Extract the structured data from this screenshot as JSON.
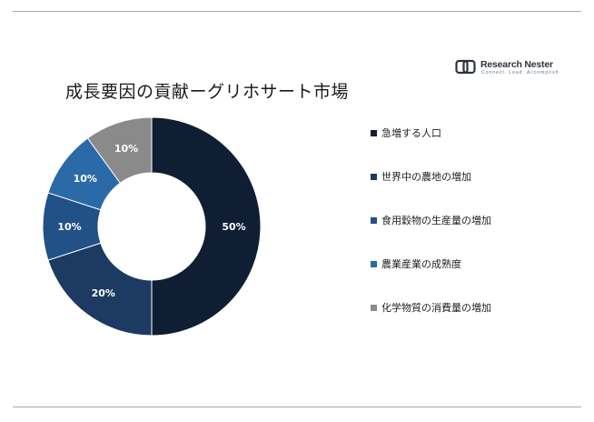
{
  "page": {
    "title": "成長要因の貢献ーグリホサート市場"
  },
  "brand": {
    "name": "Research Nester",
    "tagline": "Connect. Lead. Accomplish",
    "logo_icon": "rn-logo-icon"
  },
  "colors": {
    "navy": "#0f1e33",
    "dark_blue": "#1c3a62",
    "mid_blue": "#215186",
    "bright_blue": "#2a6aa8",
    "gray": "#8a8a8a"
  },
  "chart_data": {
    "type": "donut",
    "title": "成長要因の貢献ーグリホサート市場",
    "unit": "%",
    "legend_position": "right",
    "slices": [
      {
        "label": "急増する人口",
        "value": 50,
        "display": "50%",
        "color": "#0f1e33"
      },
      {
        "label": "世界中の農地の増加",
        "value": 20,
        "display": "20%",
        "color": "#1c3a62"
      },
      {
        "label": "食用穀物の生産量の増加",
        "value": 10,
        "display": "10%",
        "color": "#215186"
      },
      {
        "label": "農業産業の成熟度",
        "value": 10,
        "display": "10%",
        "color": "#2a6aa8"
      },
      {
        "label": "化学物質の消費量の増加",
        "value": 10,
        "display": "10%",
        "color": "#8a8a8a"
      }
    ]
  }
}
